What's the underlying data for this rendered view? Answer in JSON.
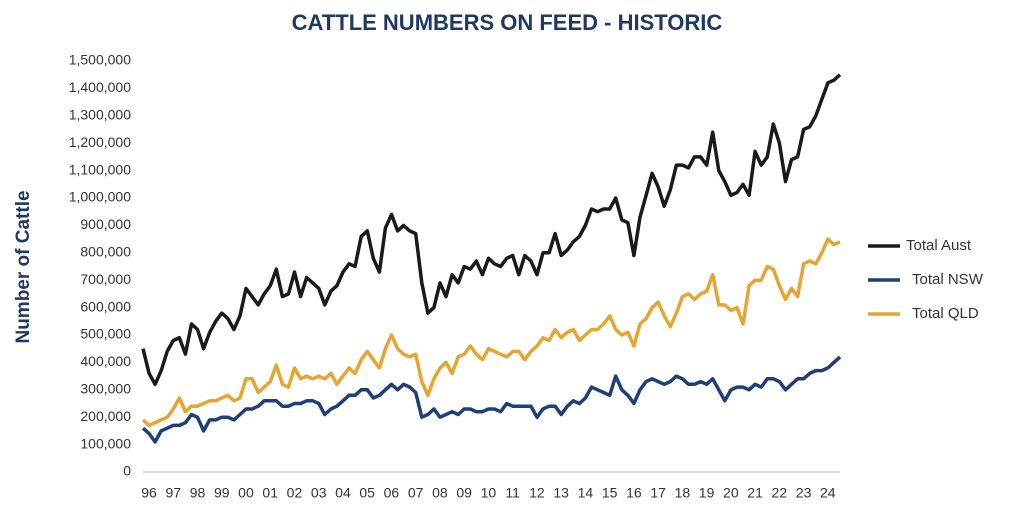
{
  "chart_data": {
    "type": "line",
    "title": "CATTLE NUMBERS ON FEED - HISTORIC",
    "y_label": "Number of Cattle",
    "categories": [
      "96",
      null,
      null,
      null,
      "97",
      null,
      null,
      null,
      "98",
      null,
      null,
      null,
      "99",
      null,
      null,
      null,
      "00",
      null,
      null,
      null,
      "01",
      null,
      null,
      null,
      "02",
      null,
      null,
      null,
      "03",
      null,
      null,
      null,
      "04",
      null,
      null,
      null,
      "05",
      null,
      null,
      null,
      "06",
      null,
      null,
      null,
      "07",
      null,
      null,
      null,
      "08",
      null,
      null,
      null,
      "09",
      null,
      null,
      null,
      "10",
      null,
      null,
      null,
      "11",
      null,
      null,
      null,
      "12",
      null,
      null,
      null,
      "13",
      null,
      null,
      null,
      "14",
      null,
      null,
      null,
      "15",
      null,
      null,
      null,
      "16",
      null,
      null,
      null,
      "17",
      null,
      null,
      null,
      "18",
      null,
      null,
      null,
      "19",
      null,
      null,
      null,
      "20",
      null,
      null,
      null,
      "21",
      null,
      null,
      null,
      "22",
      null,
      null,
      null,
      "23",
      null,
      null,
      null,
      "24",
      null,
      null,
      null
    ],
    "series": [
      {
        "name": "Total Aust",
        "color": "#1a1a1a",
        "values": [
          450000,
          360000,
          320000,
          370000,
          440000,
          480000,
          490000,
          430000,
          540000,
          520000,
          450000,
          510000,
          550000,
          580000,
          560000,
          520000,
          570000,
          670000,
          640000,
          610000,
          650000,
          680000,
          740000,
          640000,
          650000,
          730000,
          640000,
          710000,
          690000,
          670000,
          610000,
          660000,
          680000,
          730000,
          760000,
          750000,
          860000,
          880000,
          780000,
          730000,
          890000,
          940000,
          880000,
          900000,
          880000,
          870000,
          690000,
          580000,
          600000,
          690000,
          640000,
          720000,
          690000,
          750000,
          740000,
          770000,
          720000,
          780000,
          760000,
          750000,
          780000,
          790000,
          720000,
          790000,
          770000,
          720000,
          800000,
          800000,
          870000,
          790000,
          810000,
          840000,
          860000,
          900000,
          960000,
          950000,
          960000,
          960000,
          1000000,
          920000,
          910000,
          790000,
          930000,
          1010000,
          1090000,
          1040000,
          970000,
          1030000,
          1120000,
          1120000,
          1110000,
          1150000,
          1150000,
          1120000,
          1240000,
          1100000,
          1060000,
          1010000,
          1020000,
          1050000,
          1010000,
          1170000,
          1120000,
          1150000,
          1270000,
          1200000,
          1060000,
          1140000,
          1150000,
          1250000,
          1260000,
          1300000,
          1360000,
          1420000,
          1430000,
          1450000
        ]
      },
      {
        "name": "Total NSW",
        "color": "#1f3f7a",
        "values": [
          160000,
          140000,
          110000,
          150000,
          160000,
          170000,
          170000,
          180000,
          210000,
          200000,
          150000,
          190000,
          190000,
          200000,
          200000,
          190000,
          210000,
          230000,
          230000,
          240000,
          260000,
          260000,
          260000,
          240000,
          240000,
          250000,
          250000,
          260000,
          260000,
          250000,
          210000,
          230000,
          240000,
          260000,
          280000,
          280000,
          300000,
          300000,
          270000,
          280000,
          300000,
          320000,
          300000,
          320000,
          310000,
          290000,
          200000,
          210000,
          230000,
          200000,
          210000,
          220000,
          210000,
          230000,
          230000,
          220000,
          220000,
          230000,
          230000,
          220000,
          250000,
          240000,
          240000,
          240000,
          240000,
          200000,
          230000,
          240000,
          240000,
          210000,
          240000,
          260000,
          250000,
          270000,
          310000,
          300000,
          290000,
          280000,
          350000,
          300000,
          280000,
          250000,
          300000,
          330000,
          340000,
          330000,
          320000,
          330000,
          350000,
          340000,
          320000,
          320000,
          330000,
          320000,
          340000,
          300000,
          260000,
          300000,
          310000,
          310000,
          300000,
          320000,
          310000,
          340000,
          340000,
          330000,
          300000,
          320000,
          340000,
          340000,
          360000,
          370000,
          370000,
          380000,
          400000,
          420000
        ]
      },
      {
        "name": "Total QLD",
        "color": "#e6a532",
        "values": [
          190000,
          170000,
          180000,
          190000,
          200000,
          230000,
          270000,
          220000,
          240000,
          240000,
          250000,
          260000,
          260000,
          270000,
          280000,
          260000,
          270000,
          340000,
          340000,
          290000,
          310000,
          330000,
          390000,
          320000,
          310000,
          380000,
          340000,
          350000,
          340000,
          350000,
          340000,
          360000,
          320000,
          350000,
          380000,
          360000,
          410000,
          440000,
          410000,
          380000,
          450000,
          500000,
          450000,
          430000,
          420000,
          430000,
          330000,
          280000,
          340000,
          380000,
          400000,
          360000,
          420000,
          430000,
          460000,
          430000,
          410000,
          450000,
          440000,
          430000,
          420000,
          440000,
          440000,
          410000,
          440000,
          460000,
          490000,
          480000,
          520000,
          490000,
          510000,
          520000,
          480000,
          500000,
          520000,
          520000,
          540000,
          570000,
          520000,
          500000,
          510000,
          460000,
          540000,
          560000,
          600000,
          620000,
          570000,
          530000,
          580000,
          640000,
          650000,
          630000,
          650000,
          660000,
          720000,
          610000,
          610000,
          590000,
          600000,
          540000,
          680000,
          700000,
          700000,
          750000,
          740000,
          680000,
          630000,
          670000,
          640000,
          760000,
          770000,
          760000,
          800000,
          850000,
          830000,
          840000
        ]
      }
    ],
    "ylim": [
      0,
      1500000
    ],
    "yticks": [
      0,
      {
        "value": 100000,
        "label": "100,000"
      },
      {
        "value": 200000,
        "label": "200,000"
      },
      {
        "value": 300000,
        "label": "300,000"
      },
      {
        "value": 400000,
        "label": "400,000"
      },
      {
        "value": 500000,
        "label": "500,000"
      },
      {
        "value": 600000,
        "label": "600,000"
      },
      {
        "value": 700000,
        "label": "700,000"
      },
      {
        "value": 800000,
        "label": "800,000"
      },
      {
        "value": 900000,
        "label": "900,000"
      },
      {
        "value": 1000000,
        "label": "1,000,000"
      },
      {
        "value": 1100000,
        "label": "1,100,000"
      },
      {
        "value": 1200000,
        "label": "1,200,000"
      },
      {
        "value": 1300000,
        "label": "1,300,000"
      },
      {
        "value": 1400000,
        "label": "1,400,000"
      },
      {
        "value": 1500000,
        "label": "1,500,000"
      }
    ],
    "grid": false,
    "legend": "right"
  }
}
